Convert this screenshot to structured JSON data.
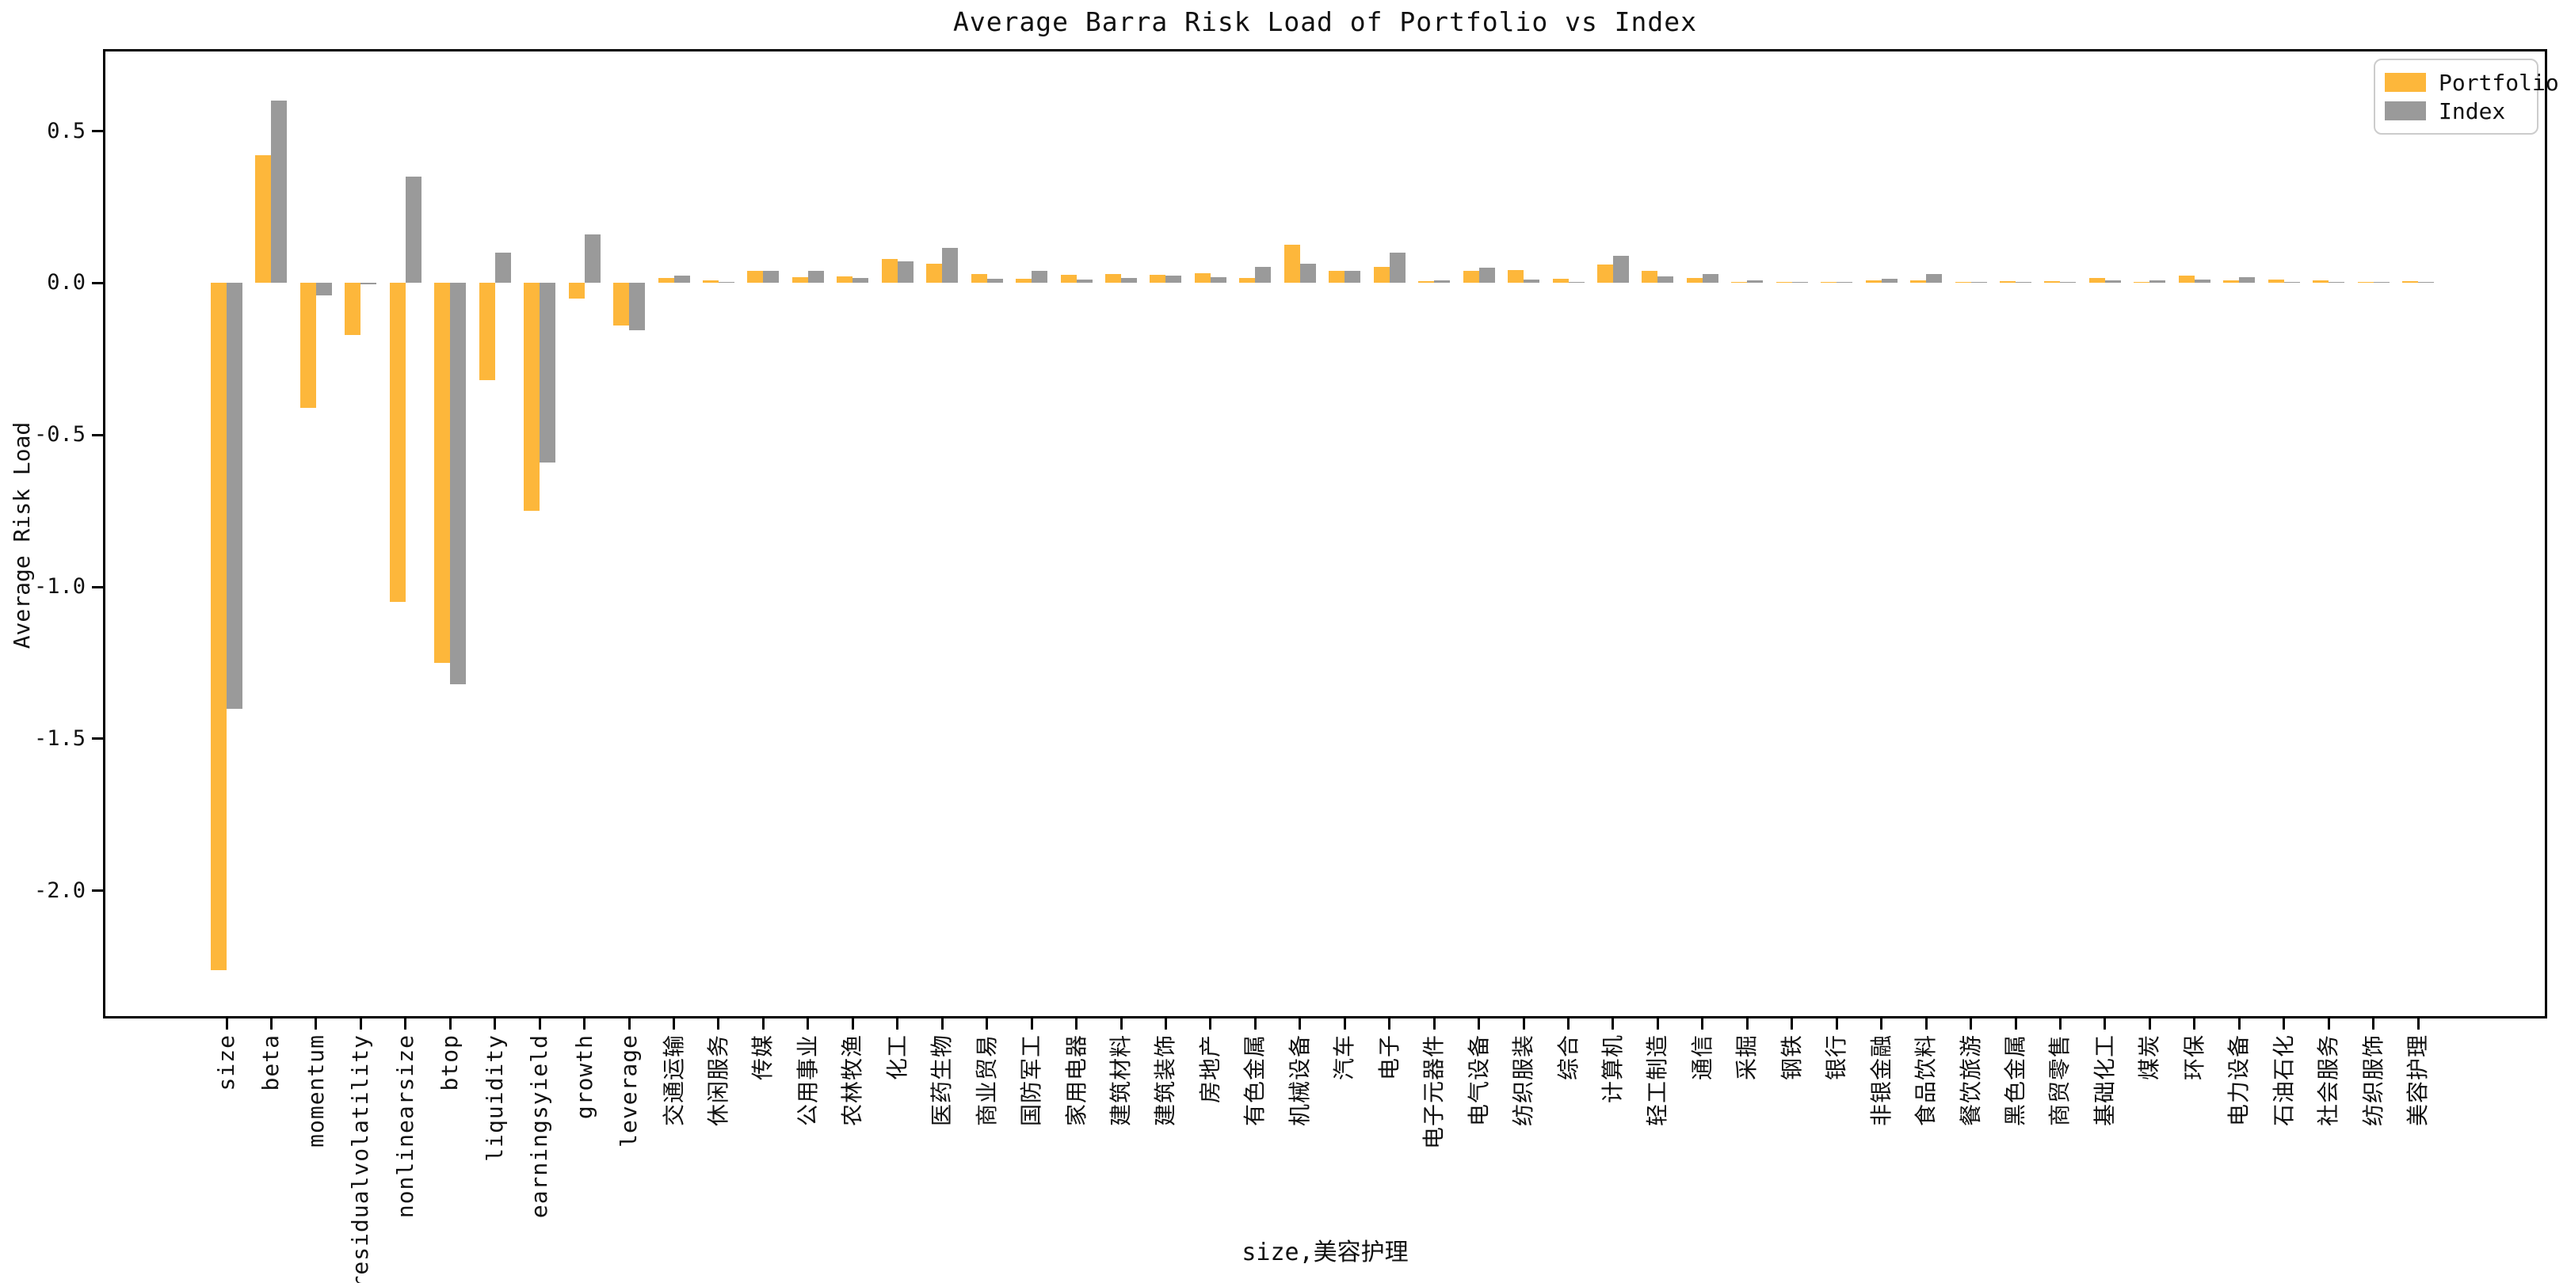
{
  "chart_data": {
    "type": "bar",
    "title": "Average Barra Risk Load of Portfolio vs Index",
    "xlabel": "size,美容护理",
    "ylabel": "Average Risk Load",
    "grid": false,
    "legend_position": "upper right",
    "ylim": [
      -2.42,
      0.77
    ],
    "ytick_values": [
      0.5,
      0.0,
      -0.5,
      -1.0,
      -1.5,
      -2.0
    ],
    "ytick_labels": [
      "0.5",
      "0.0",
      "-0.5",
      "-1.0",
      "-1.5",
      "-2.0"
    ],
    "categories": [
      "size",
      "beta",
      "momentum",
      "residualvolatility",
      "nonlinearsize",
      "btop",
      "liquidity",
      "earningsyield",
      "growth",
      "leverage",
      "交通运输",
      "休闲服务",
      "传媒",
      "公用事业",
      "农林牧渔",
      "化工",
      "医药生物",
      "商业贸易",
      "国防军工",
      "家用电器",
      "建筑材料",
      "建筑装饰",
      "房地产",
      "有色金属",
      "机械设备",
      "汽车",
      "电子",
      "电子元器件",
      "电气设备",
      "纺织服装",
      "综合",
      "计算机",
      "轻工制造",
      "通信",
      "采掘",
      "钢铁",
      "银行",
      "非银金融",
      "食品饮料",
      "餐饮旅游",
      "黑色金属",
      "商贸零售",
      "基础化工",
      "煤炭",
      "环保",
      "电力设备",
      "石油石化",
      "社会服务",
      "纺织服饰",
      "美容护理"
    ],
    "series": [
      {
        "name": "Portfolio",
        "color": "#fdb73b",
        "values": [
          -2.26,
          0.42,
          -0.41,
          -0.17,
          -1.05,
          -1.25,
          -0.32,
          -0.75,
          -0.05,
          -0.14,
          0.017,
          0.009,
          0.039,
          0.02,
          0.022,
          0.08,
          0.064,
          0.031,
          0.015,
          0.026,
          0.03,
          0.026,
          0.033,
          0.018,
          0.127,
          0.04,
          0.053,
          0.007,
          0.04,
          0.043,
          0.013,
          0.06,
          0.039,
          0.018,
          0.004,
          0.002,
          0.004,
          0.01,
          0.009,
          0.001,
          0.007,
          0.006,
          0.016,
          0.004,
          0.025,
          0.01,
          0.011,
          0.01,
          0.003,
          0.006
        ]
      },
      {
        "name": "Index",
        "color": "#9a9a9a",
        "values": [
          -1.4,
          0.6,
          -0.04,
          -0.005,
          0.35,
          -1.32,
          0.1,
          -0.59,
          0.16,
          -0.155,
          0.024,
          0.002,
          0.041,
          0.04,
          0.018,
          0.071,
          0.115,
          0.014,
          0.04,
          0.012,
          0.016,
          0.025,
          0.02,
          0.052,
          0.064,
          0.04,
          0.101,
          0.008,
          0.05,
          0.011,
          0.005,
          0.089,
          0.021,
          0.031,
          0.01,
          0.001,
          0.004,
          0.014,
          0.029,
          0.001,
          0.002,
          0.002,
          0.008,
          0.01,
          0.011,
          0.019,
          0.002,
          0.002,
          0.002,
          0.002
        ]
      }
    ]
  },
  "colors": {
    "portfolio": "#fdb73b",
    "index": "#9a9a9a",
    "axis": "#000000",
    "legend_border": "#cccccc",
    "background": "#ffffff"
  }
}
